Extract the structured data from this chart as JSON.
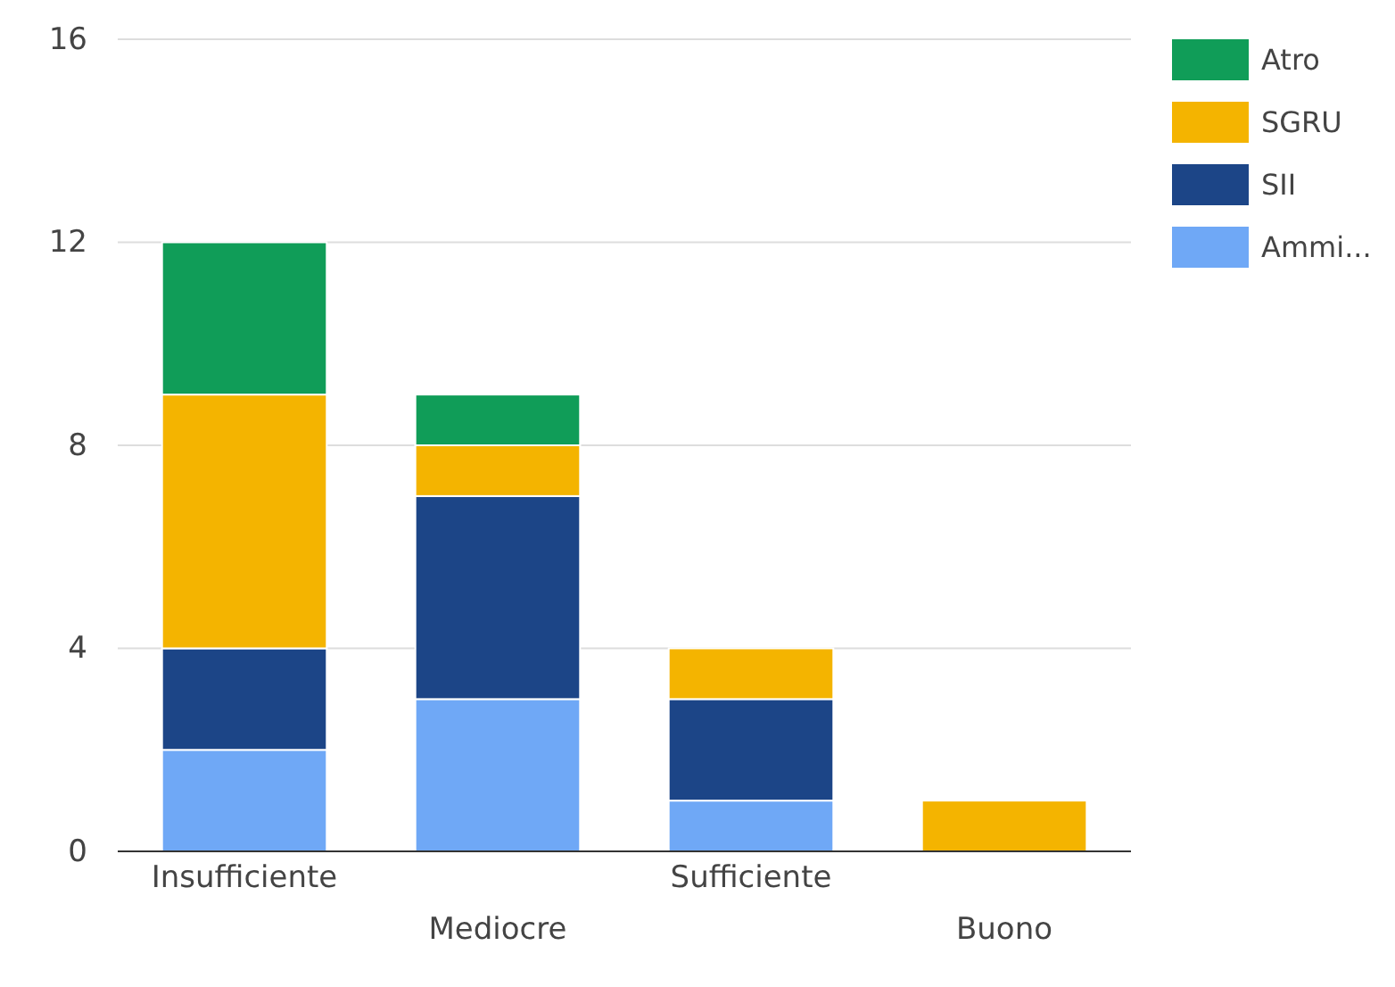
{
  "chart_data": {
    "type": "bar",
    "stacked": true,
    "categories": [
      "Insufficiente",
      "Mediocre",
      "Sufficiente",
      "Buono"
    ],
    "series": [
      {
        "name": "Ammi...",
        "color": "#6fa8f6",
        "values": [
          2,
          3,
          1,
          0
        ]
      },
      {
        "name": "SII",
        "color": "#1c4587",
        "values": [
          2,
          4,
          2,
          0
        ]
      },
      {
        "name": "SGRU",
        "color": "#f4b400",
        "values": [
          5,
          1,
          1,
          1
        ]
      },
      {
        "name": "Atro",
        "color": "#109d58",
        "values": [
          3,
          1,
          0,
          0
        ]
      }
    ],
    "ylim": [
      0,
      16
    ],
    "yticks": [
      0,
      4,
      8,
      12,
      16
    ],
    "grid": "y",
    "legend": "top right"
  }
}
